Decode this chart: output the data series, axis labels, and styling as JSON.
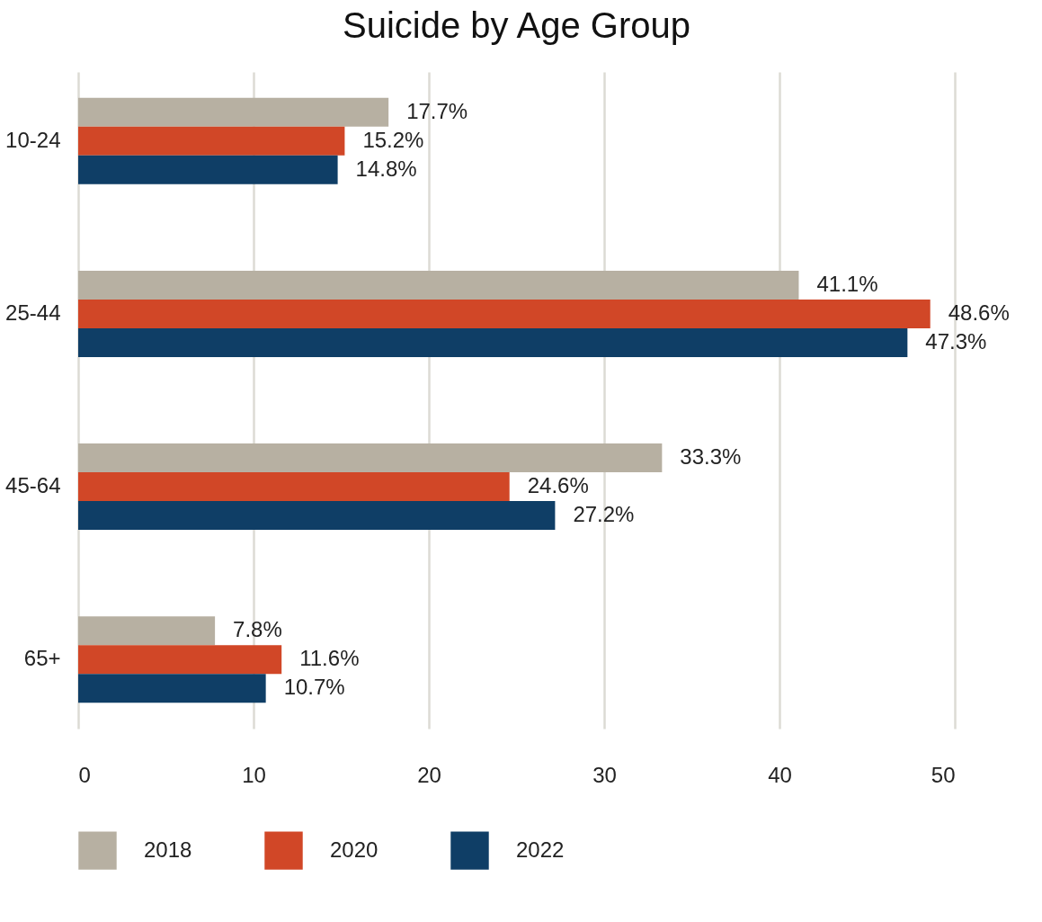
{
  "chart_data": {
    "type": "bar",
    "orientation": "horizontal",
    "title": "Suicide by Age Group",
    "categories": [
      "10-24",
      "25-44",
      "45-64",
      "65+"
    ],
    "series": [
      {
        "name": "2018",
        "color": "#b7b0a2",
        "values": [
          17.7,
          41.1,
          33.3,
          7.8
        ],
        "value_labels": [
          "17.7%",
          "41.1%",
          "33.3%",
          "7.8%"
        ]
      },
      {
        "name": "2020",
        "color": "#d14727",
        "values": [
          15.2,
          48.6,
          24.6,
          11.6
        ],
        "value_labels": [
          "15.2%",
          "48.6%",
          "24.6%",
          "11.6%"
        ]
      },
      {
        "name": "2022",
        "color": "#0f3e66",
        "values": [
          14.8,
          47.3,
          27.2,
          10.7
        ],
        "value_labels": [
          "14.8%",
          "47.3%",
          "27.2%",
          "10.7%"
        ]
      }
    ],
    "xlim": [
      0,
      50
    ],
    "xticks": [
      0,
      10,
      20,
      30,
      40,
      50
    ],
    "grid": "x",
    "legend": "bottom"
  }
}
